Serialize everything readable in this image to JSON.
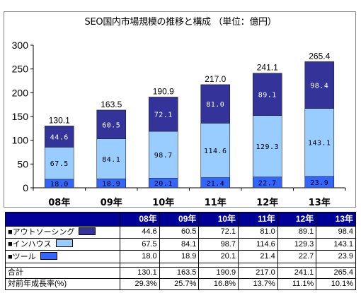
{
  "chart_data": {
    "type": "bar",
    "stacked": true,
    "title": "SEO国内市場規模の推移と構成 （単位：億円）",
    "categories": [
      "08年",
      "09年",
      "10年",
      "11年",
      "12年",
      "13年"
    ],
    "series": [
      {
        "name": "ツール",
        "color": "#3366ff",
        "values": [
          18.0,
          18.9,
          20.1,
          21.4,
          22.7,
          23.9
        ]
      },
      {
        "name": "インハウス",
        "color": "#99ccff",
        "values": [
          67.5,
          84.1,
          98.7,
          114.6,
          129.3,
          143.1
        ]
      },
      {
        "name": "アウトソーシング",
        "color": "#333399",
        "values": [
          44.6,
          60.5,
          72.1,
          81.0,
          89.1,
          98.4
        ]
      }
    ],
    "totals": [
      130.1,
      163.5,
      190.9,
      217.0,
      241.1,
      265.4
    ],
    "ylim": [
      0,
      300
    ],
    "yticks": [
      0,
      50,
      100,
      150,
      200,
      250,
      300
    ],
    "grid": false
  },
  "table": {
    "rows": [
      {
        "label": "■アウトソーシング",
        "values": [
          "44.6",
          "60.5",
          "72.1",
          "81.0",
          "89.1",
          "98.4"
        ]
      },
      {
        "label": "■インハウス",
        "values": [
          "67.5",
          "84.1",
          "98.7",
          "114.6",
          "129.3",
          "143.1"
        ]
      },
      {
        "label": "■ツール",
        "values": [
          "18.0",
          "18.9",
          "20.1",
          "21.4",
          "22.7",
          "23.9"
        ]
      }
    ],
    "total_label": "合計",
    "totals": [
      "130.1",
      "163.5",
      "190.9",
      "217.0",
      "241.1",
      "265.4"
    ],
    "growth_label": "対前年成長率(%)",
    "growth": [
      "29.3%",
      "25.7%",
      "16.8%",
      "13.7%",
      "11.1%",
      "10.1%"
    ]
  }
}
